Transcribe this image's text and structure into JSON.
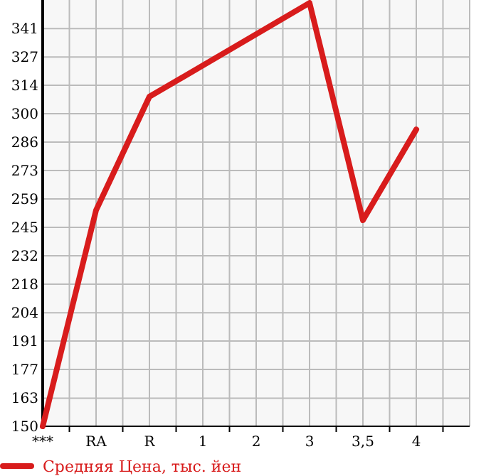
{
  "chart_data": {
    "type": "line",
    "categories": [
      "***",
      "RA",
      "R",
      "1",
      "2",
      "3",
      "3,5",
      "4"
    ],
    "series": [
      {
        "name": "Средняя Цена, тыс. йен",
        "color": "#d81c1c",
        "values": [
          150,
          253.7,
          308.2,
          null,
          null,
          353.2,
          248.9,
          292.5
        ]
      }
    ],
    "ylim": [
      150,
      354.6
    ],
    "yticks": [
      150,
      {
        "value": 163.49,
        "label": "163"
      },
      {
        "value": 177.27,
        "label": "177"
      },
      {
        "value": 190.91,
        "label": "191"
      },
      {
        "value": 204.49,
        "label": "204"
      },
      {
        "value": 218.18,
        "label": "218"
      },
      {
        "value": 231.82,
        "label": "232"
      },
      {
        "value": 245.45,
        "label": "245"
      },
      {
        "value": 259.09,
        "label": "259"
      },
      {
        "value": 272.73,
        "label": "273"
      },
      {
        "value": 286.36,
        "label": "286"
      },
      300,
      {
        "value": 313.64,
        "label": "314"
      },
      {
        "value": 327.27,
        "label": "327"
      },
      {
        "value": 340.91,
        "label": "341"
      }
    ],
    "grid": true,
    "legend": "bottom left",
    "marker": "none",
    "line_style": "solid"
  }
}
